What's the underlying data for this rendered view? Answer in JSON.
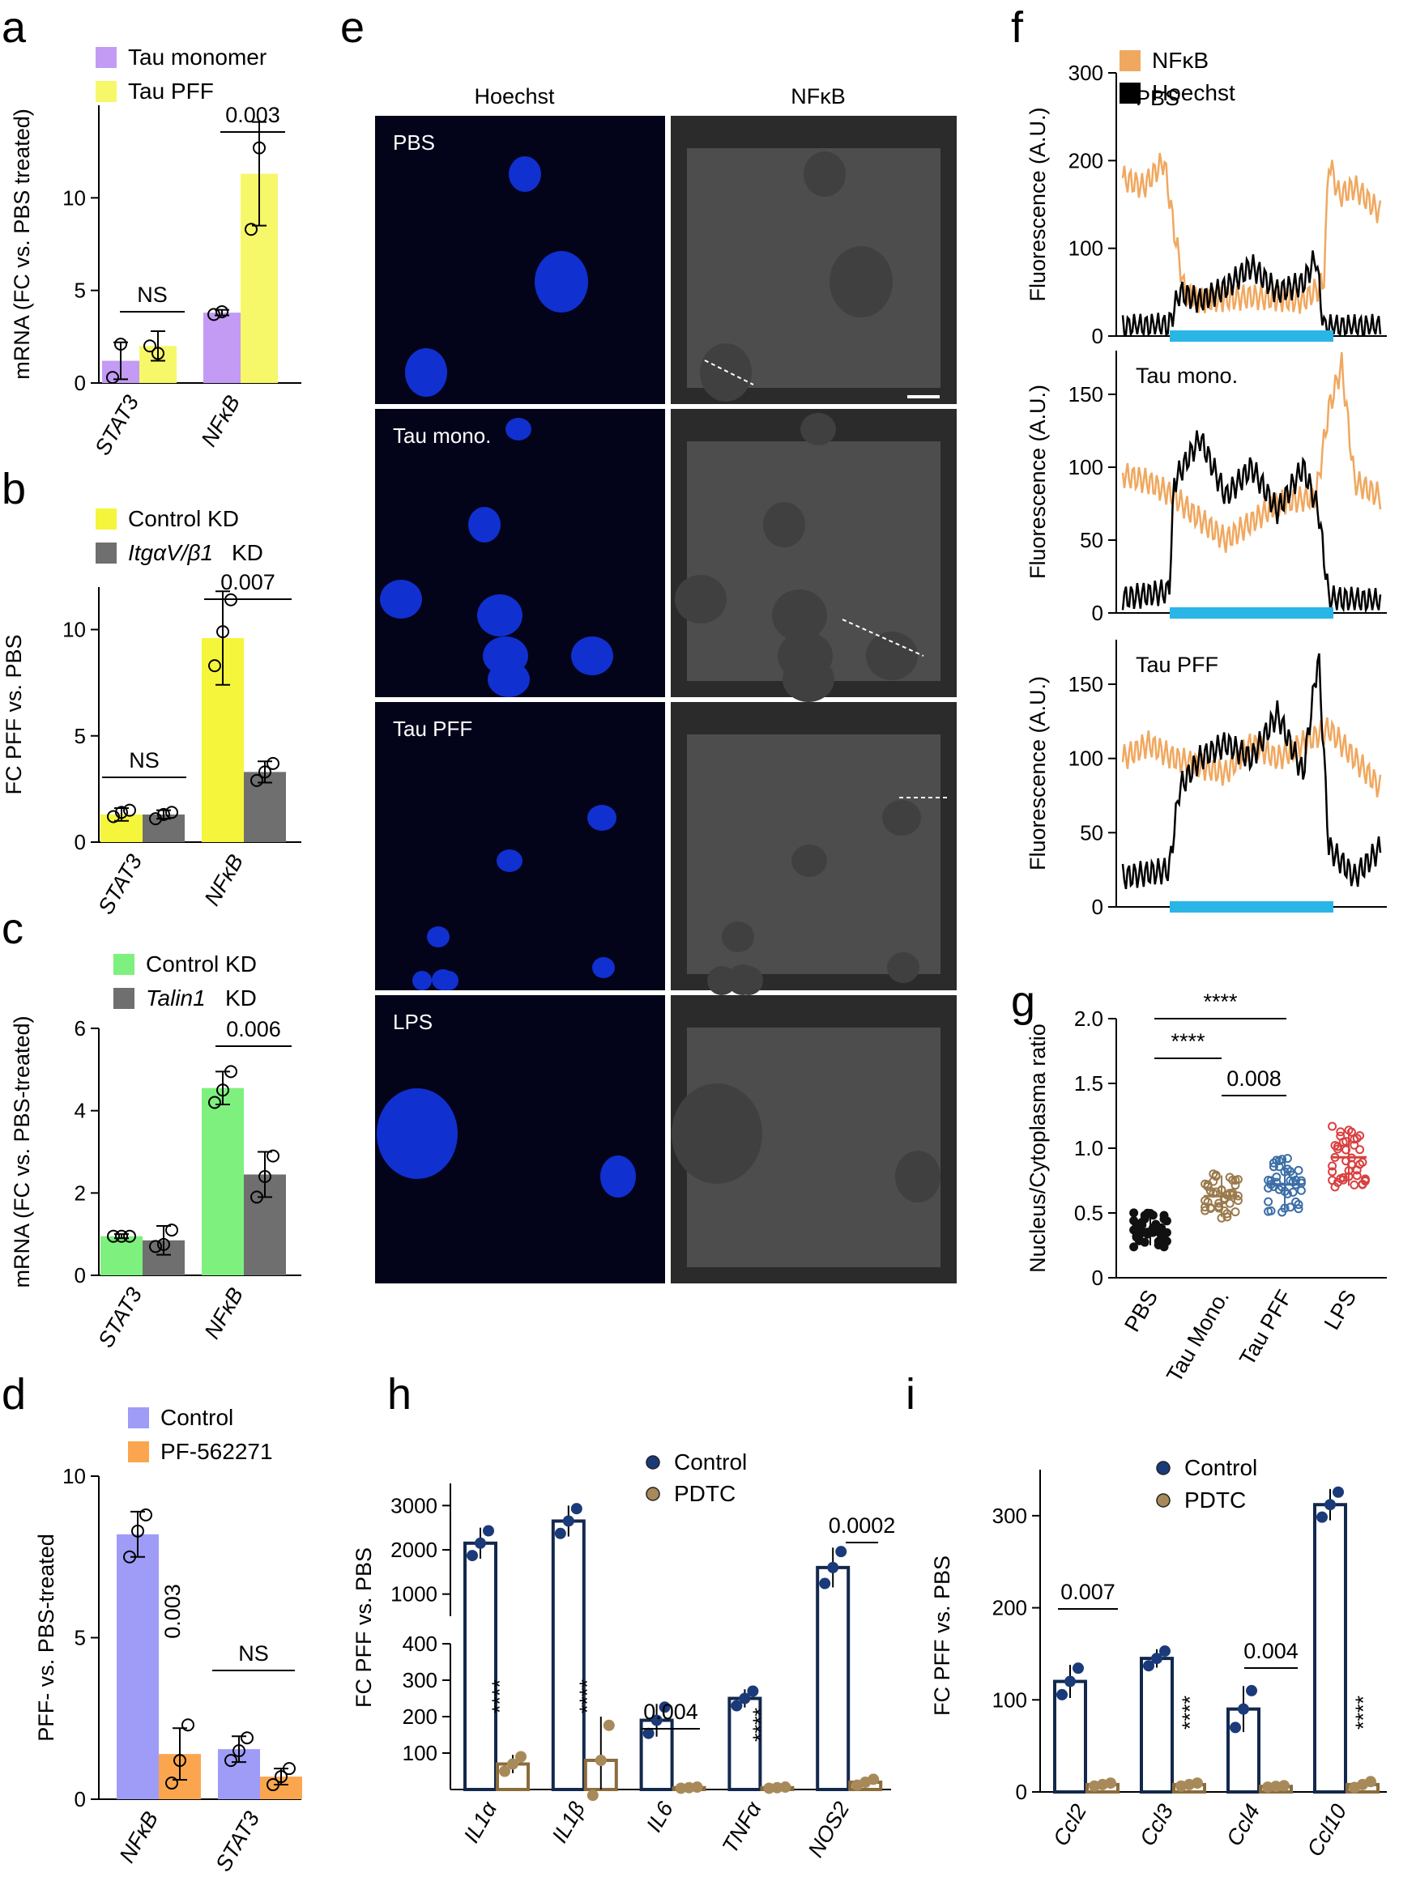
{
  "panel_letters": [
    "a",
    "b",
    "c",
    "d",
    "e",
    "f",
    "g",
    "h",
    "i"
  ],
  "colors": {
    "tau_monomer": "#c39bf5",
    "tau_pff": "#f7f76a",
    "control_kd_b": "#f5f53c",
    "kd_gray": "#6f6f6f",
    "control_kd_c": "#7ef07e",
    "control_d": "#9f9cf7",
    "pf_d": "#fba64f",
    "nfkb_trace": "#f0a860",
    "hoechst_trace": "#000000",
    "bar_cyan": "#29b6e6",
    "pbs_dots": "#111111",
    "mono_dots": "#9a7a4c",
    "pff_dots": "#3b6ea7",
    "lps_dots": "#d94040",
    "control_dot": "#1a3a7a",
    "pdtc_dot": "#a88a5a"
  },
  "panel_e": {
    "col_labels": [
      "Hoechst",
      "NFκB"
    ],
    "row_labels": [
      "PBS",
      "Tau mono.",
      "Tau PFF",
      "LPS"
    ]
  },
  "chart_data": [
    {
      "id": "a",
      "type": "bar",
      "categories": [
        "STAT3",
        "NFκB"
      ],
      "ylabel": "mRNA (FC vs. PBS treated)",
      "ylim": [
        0,
        15
      ],
      "yticks": [
        0,
        5,
        10
      ],
      "series": [
        {
          "name": "Tau monomer",
          "values": [
            1.2,
            3.8
          ],
          "err": [
            1.0,
            0.15
          ],
          "points": [
            [
              0.3,
              2.1
            ],
            [
              3.7,
              3.85
            ]
          ]
        },
        {
          "name": "Tau PFF",
          "values": [
            2.0,
            11.3
          ],
          "err": [
            0.8,
            2.8
          ],
          "points": [
            [
              2.0,
              1.6
            ],
            [
              8.3,
              12.7
            ]
          ]
        }
      ],
      "annotations": [
        "NS",
        "0.003"
      ]
    },
    {
      "id": "b",
      "type": "bar",
      "categories": [
        "STAT3",
        "NFκB"
      ],
      "ylabel": "FC PFF vs. PBS",
      "ylim": [
        0,
        12
      ],
      "yticks": [
        0,
        5,
        10
      ],
      "series": [
        {
          "name": "Control KD",
          "values": [
            1.3,
            9.6
          ],
          "err": [
            0.3,
            2.2
          ],
          "points": [
            [
              1.2,
              1.4,
              1.5
            ],
            [
              8.3,
              9.9,
              11.4
            ]
          ]
        },
        {
          "name": "ItgαV/β1 KD",
          "values": [
            1.3,
            3.3
          ],
          "err": [
            0.2,
            0.5
          ],
          "points": [
            [
              1.1,
              1.3,
              1.4
            ],
            [
              2.9,
              3.3,
              3.7
            ]
          ]
        }
      ],
      "legend_names_display": [
        "Control KD",
        "ItgαV/β1",
        "KD"
      ],
      "annotations": [
        "NS",
        "0.007"
      ]
    },
    {
      "id": "c",
      "type": "bar",
      "categories": [
        "STAT3",
        "NFκB"
      ],
      "ylabel": "mRNA (FC vs. PBS-treated)",
      "ylim": [
        0,
        6
      ],
      "yticks": [
        0,
        2,
        4,
        6
      ],
      "series": [
        {
          "name": "Control KD",
          "values": [
            0.95,
            4.55
          ],
          "err": [
            0.05,
            0.4
          ],
          "points": [
            [
              0.95,
              0.95,
              0.95
            ],
            [
              4.2,
              4.5,
              4.95
            ]
          ]
        },
        {
          "name": "Talin1 KD",
          "values": [
            0.85,
            2.45
          ],
          "err": [
            0.35,
            0.55
          ],
          "points": [
            [
              0.7,
              0.75,
              1.1
            ],
            [
              1.9,
              2.4,
              2.9
            ]
          ]
        }
      ],
      "legend_names_display": [
        "Control KD",
        "Talin1",
        "KD"
      ],
      "annotations": [
        "0.006"
      ]
    },
    {
      "id": "d",
      "type": "bar",
      "categories": [
        "NFκB",
        "STAT3"
      ],
      "ylabel": "PFF- vs. PBS-treated",
      "ylim": [
        0,
        10
      ],
      "yticks": [
        0,
        5,
        10
      ],
      "series": [
        {
          "name": "Control",
          "values": [
            8.2,
            1.55
          ],
          "err": [
            0.7,
            0.4
          ],
          "points": [
            [
              7.5,
              8.3,
              8.8
            ],
            [
              1.2,
              1.5,
              1.9
            ]
          ]
        },
        {
          "name": "PF-562271",
          "values": [
            1.4,
            0.7
          ],
          "err": [
            0.8,
            0.25
          ],
          "points": [
            [
              0.5,
              1.2,
              2.3
            ],
            [
              0.45,
              0.7,
              0.95
            ]
          ]
        }
      ],
      "annotations": [
        "0.003",
        "NS"
      ]
    },
    {
      "id": "f",
      "type": "line",
      "legend": [
        "NFκB",
        "Hoechst"
      ],
      "ylabel": "Fluorescence (A.U.)",
      "subplots": [
        {
          "label": "PBS",
          "ylim": [
            0,
            300
          ],
          "yticks": [
            0,
            100,
            200,
            300
          ],
          "nfkb_profile": [
            [
              0,
              180
            ],
            [
              0.08,
              170
            ],
            [
              0.16,
              200
            ],
            [
              0.2,
              120
            ],
            [
              0.24,
              50
            ],
            [
              0.3,
              40
            ],
            [
              0.5,
              45
            ],
            [
              0.7,
              40
            ],
            [
              0.78,
              60
            ],
            [
              0.8,
              200
            ],
            [
              0.84,
              160
            ],
            [
              0.9,
              170
            ],
            [
              1,
              140
            ]
          ],
          "hoechst_profile": [
            [
              0,
              10
            ],
            [
              0.18,
              12
            ],
            [
              0.22,
              50
            ],
            [
              0.3,
              40
            ],
            [
              0.4,
              55
            ],
            [
              0.5,
              80
            ],
            [
              0.6,
              50
            ],
            [
              0.7,
              60
            ],
            [
              0.75,
              90
            ],
            [
              0.78,
              10
            ],
            [
              1,
              10
            ]
          ]
        },
        {
          "label": "Tau mono.",
          "ylim": [
            0,
            180
          ],
          "yticks": [
            0,
            50,
            100,
            150
          ],
          "nfkb_profile": [
            [
              0,
              95
            ],
            [
              0.1,
              90
            ],
            [
              0.2,
              80
            ],
            [
              0.26,
              70
            ],
            [
              0.4,
              50
            ],
            [
              0.6,
              75
            ],
            [
              0.75,
              80
            ],
            [
              0.8,
              140
            ],
            [
              0.85,
              170
            ],
            [
              0.9,
              90
            ],
            [
              1,
              80
            ]
          ],
          "hoechst_profile": [
            [
              0,
              10
            ],
            [
              0.18,
              15
            ],
            [
              0.2,
              90
            ],
            [
              0.3,
              120
            ],
            [
              0.4,
              80
            ],
            [
              0.5,
              100
            ],
            [
              0.6,
              70
            ],
            [
              0.7,
              100
            ],
            [
              0.76,
              70
            ],
            [
              0.8,
              10
            ],
            [
              1,
              8
            ]
          ]
        },
        {
          "label": "Tau PFF",
          "ylim": [
            0,
            180
          ],
          "yticks": [
            0,
            50,
            100,
            150
          ],
          "nfkb_profile": [
            [
              0,
              100
            ],
            [
              0.1,
              110
            ],
            [
              0.2,
              100
            ],
            [
              0.3,
              95
            ],
            [
              0.4,
              90
            ],
            [
              0.5,
              110
            ],
            [
              0.6,
              100
            ],
            [
              0.7,
              110
            ],
            [
              0.8,
              120
            ],
            [
              0.9,
              100
            ],
            [
              1,
              80
            ]
          ],
          "hoechst_profile": [
            [
              0,
              20
            ],
            [
              0.18,
              25
            ],
            [
              0.22,
              80
            ],
            [
              0.3,
              100
            ],
            [
              0.4,
              110
            ],
            [
              0.5,
              100
            ],
            [
              0.6,
              130
            ],
            [
              0.7,
              90
            ],
            [
              0.76,
              170
            ],
            [
              0.8,
              40
            ],
            [
              0.9,
              20
            ],
            [
              1,
              40
            ]
          ]
        }
      ]
    },
    {
      "id": "g",
      "type": "scatter",
      "categories": [
        "PBS",
        "Tau Mono.",
        "Tau PFF",
        "LPS"
      ],
      "ylabel": "Nucleus/Cytoplasma ratio",
      "ylim": [
        0,
        2.0
      ],
      "yticks": [
        "0",
        "0.5",
        "1.0",
        "1.5",
        "2.0"
      ],
      "means": [
        0.37,
        0.63,
        0.72,
        0.93
      ],
      "sd": [
        0.12,
        0.16,
        0.2,
        0.22
      ],
      "n_per_group": 40,
      "annotations": [
        "****",
        "****",
        "0.008"
      ]
    },
    {
      "id": "h",
      "type": "bar",
      "categories": [
        "IL1α",
        "IL1β",
        "IL6",
        "TNFα",
        "NOS2"
      ],
      "ylabel": "FC PFF vs. PBS",
      "broken_axis": {
        "lower": [
          0,
          400
        ],
        "upper": [
          500,
          3500
        ]
      },
      "yticks_lower": [
        100,
        200,
        300,
        400
      ],
      "yticks_upper": [
        1000,
        2000,
        3000
      ],
      "series": [
        {
          "name": "Control",
          "values": [
            2150,
            2650,
            190,
            250,
            1600
          ],
          "err": [
            350,
            350,
            45,
            25,
            450
          ]
        },
        {
          "name": "PDTC",
          "values": [
            70,
            80,
            5,
            5,
            20
          ],
          "err": [
            25,
            120,
            2,
            2,
            10
          ]
        }
      ],
      "annotations": [
        "****",
        "****",
        "0.004",
        "****",
        "0.0002"
      ]
    },
    {
      "id": "i",
      "type": "bar",
      "categories": [
        "Ccl2",
        "Ccl3",
        "Ccl4",
        "Ccl10"
      ],
      "ylabel": "FC PFF vs. PBS",
      "ylim": [
        0,
        350
      ],
      "yticks": [
        0,
        100,
        200,
        300
      ],
      "series": [
        {
          "name": "Control",
          "values": [
            120,
            145,
            90,
            312
          ],
          "err": [
            18,
            10,
            25,
            17
          ]
        },
        {
          "name": "PDTC",
          "values": [
            8,
            8,
            6,
            8
          ],
          "err": [
            2,
            2,
            1,
            4
          ]
        }
      ],
      "annotations": [
        "0.007",
        "****",
        "0.004",
        "****"
      ]
    }
  ]
}
